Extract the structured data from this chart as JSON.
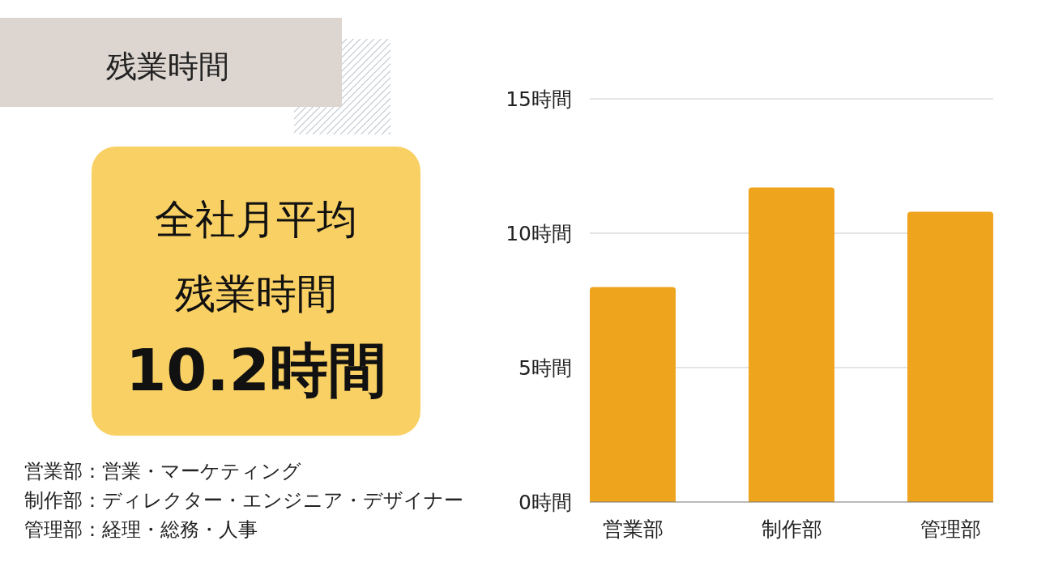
{
  "chart_data": {
    "type": "bar",
    "title": "残業時間",
    "categories": [
      "営業部",
      "制作部",
      "管理部"
    ],
    "values": [
      8.0,
      11.7,
      10.8
    ],
    "color": "#eea41c",
    "ylim": [
      0,
      15
    ],
    "yticks": [
      {
        "value": 0,
        "label": "0時間"
      },
      {
        "value": 5,
        "label": "5時間"
      },
      {
        "value": 10,
        "label": "10時間"
      },
      {
        "value": 15,
        "label": "15時間"
      }
    ],
    "grid": "y",
    "annotations": [
      "全社月平均",
      "残業時間",
      "10.2時間",
      "営業部：営業・マーケティング",
      "制作部：ディレクター・エンジニア・デザイナー",
      "管理部：経理・総務・人事"
    ]
  }
}
